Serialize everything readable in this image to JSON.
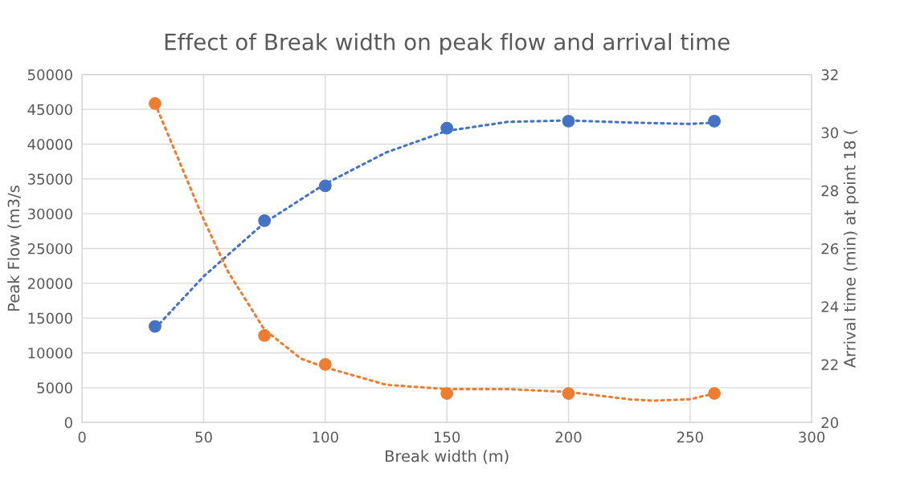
{
  "chart_data": {
    "type": "scatter",
    "title": "Effect of Break width on peak flow and arrival time",
    "xlabel": "Break width (m)",
    "ylabel": "Peak Flow (m3/s",
    "y2label": "Arrival time (min) at point 18 (",
    "xlim": [
      0,
      300
    ],
    "xticks": [
      0,
      50,
      100,
      150,
      200,
      250,
      300
    ],
    "ylim": [
      0,
      50000
    ],
    "yticks": [
      0,
      5000,
      10000,
      15000,
      20000,
      25000,
      30000,
      35000,
      40000,
      45000,
      50000
    ],
    "y2lim": [
      20,
      32
    ],
    "y2ticks": [
      20,
      22,
      24,
      26,
      28,
      30,
      32
    ],
    "grid": true,
    "series": [
      {
        "type": "line",
        "color": "#4472c4",
        "axis": "y",
        "line_style": "dotted",
        "x": [
          30,
          50,
          75,
          100,
          125,
          150,
          175,
          200,
          225,
          250,
          260
        ],
        "values": [
          13500,
          21000,
          28700,
          34300,
          38800,
          41900,
          43200,
          43400,
          43100,
          42900,
          43100
        ]
      },
      {
        "type": "line",
        "color": "#ed7d31",
        "axis": "y2",
        "line_style": "dotted",
        "x": [
          30,
          40,
          50,
          60,
          75,
          90,
          100,
          125,
          150,
          175,
          200,
          225,
          235,
          250,
          260
        ],
        "values": [
          31,
          29,
          27,
          25.2,
          23.2,
          22.2,
          21.9,
          21.3,
          21.15,
          21.15,
          21.05,
          20.8,
          20.75,
          20.8,
          21
        ]
      },
      {
        "color": "#4472c4",
        "axis": "y",
        "marker": "circle",
        "x": [
          30,
          75,
          100,
          150,
          200,
          260
        ],
        "values": [
          13800,
          29000,
          34000,
          42300,
          43300,
          43300
        ]
      },
      {
        "color": "#ed7d31",
        "axis": "y2",
        "marker": "circle",
        "x": [
          30,
          75,
          100,
          150,
          200,
          260
        ],
        "values": [
          31,
          23,
          22,
          21,
          21,
          21
        ]
      }
    ]
  }
}
